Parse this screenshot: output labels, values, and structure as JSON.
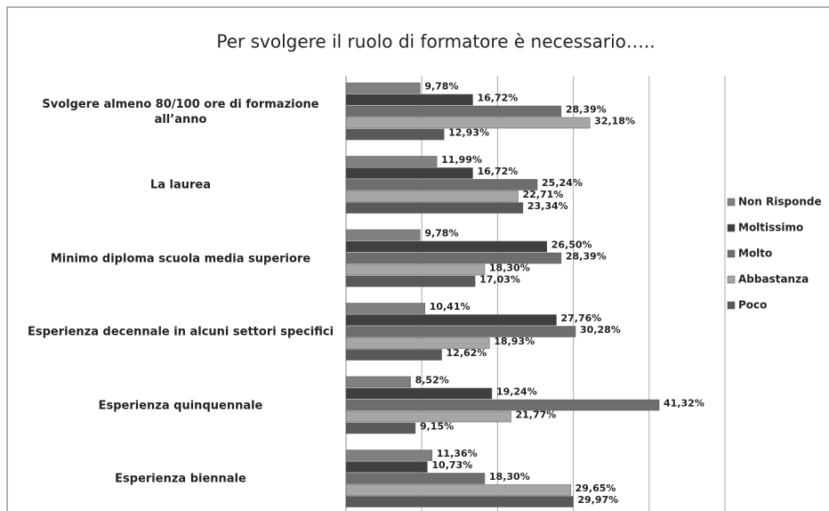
{
  "chart_data": {
    "type": "bar",
    "orientation": "horizontal",
    "title": "Per  svolgere il ruolo di formatore è necessario…..",
    "categories": [
      "Svolgere almeno 80/100 ore di formazione all’anno",
      "La laurea",
      "Minimo diploma scuola media superiore",
      "Esperienza decennale in alcuni settori specifici",
      "Esperienza quinquennale",
      "Esperienza biennale"
    ],
    "series": [
      {
        "name": "Non Risponde",
        "color": "#808080",
        "values": [
          9.78,
          11.99,
          9.78,
          10.41,
          8.52,
          11.36
        ],
        "value_labels": [
          "9,78%",
          "11,99%",
          "9,78%",
          "10,41%",
          "8,52%",
          "11,36%"
        ]
      },
      {
        "name": "Moltissimo",
        "color": "#3f3f3f",
        "values": [
          16.72,
          16.72,
          26.5,
          27.76,
          19.24,
          10.73
        ],
        "value_labels": [
          "16,72%",
          "16,72%",
          "26,50%",
          "27,76%",
          "19,24%",
          "10,73%"
        ]
      },
      {
        "name": "Molto",
        "color": "#6e6e6e",
        "values": [
          28.39,
          25.24,
          28.39,
          30.28,
          41.32,
          18.3
        ],
        "value_labels": [
          "28,39%",
          "25,24%",
          "28,39%",
          "30,28%",
          "41,32%",
          "18,30%"
        ]
      },
      {
        "name": "Abbastanza",
        "color": "#a6a6a6",
        "values": [
          32.18,
          22.71,
          18.3,
          18.93,
          21.77,
          29.65
        ],
        "value_labels": [
          "32,18%",
          "22,71%",
          "18,30%",
          "18,93%",
          "21,77%",
          "29,65%"
        ]
      },
      {
        "name": "Poco",
        "color": "#595959",
        "values": [
          12.93,
          23.34,
          17.03,
          12.62,
          9.15,
          29.97
        ],
        "value_labels": [
          "12,93%",
          "23,34%",
          "17,03%",
          "12,62%",
          "9,15%",
          "29,97%"
        ]
      }
    ],
    "xlim": [
      0,
      50
    ],
    "xticks": [
      0,
      10,
      20,
      30,
      40,
      50
    ],
    "grid": true,
    "legend": "right"
  }
}
